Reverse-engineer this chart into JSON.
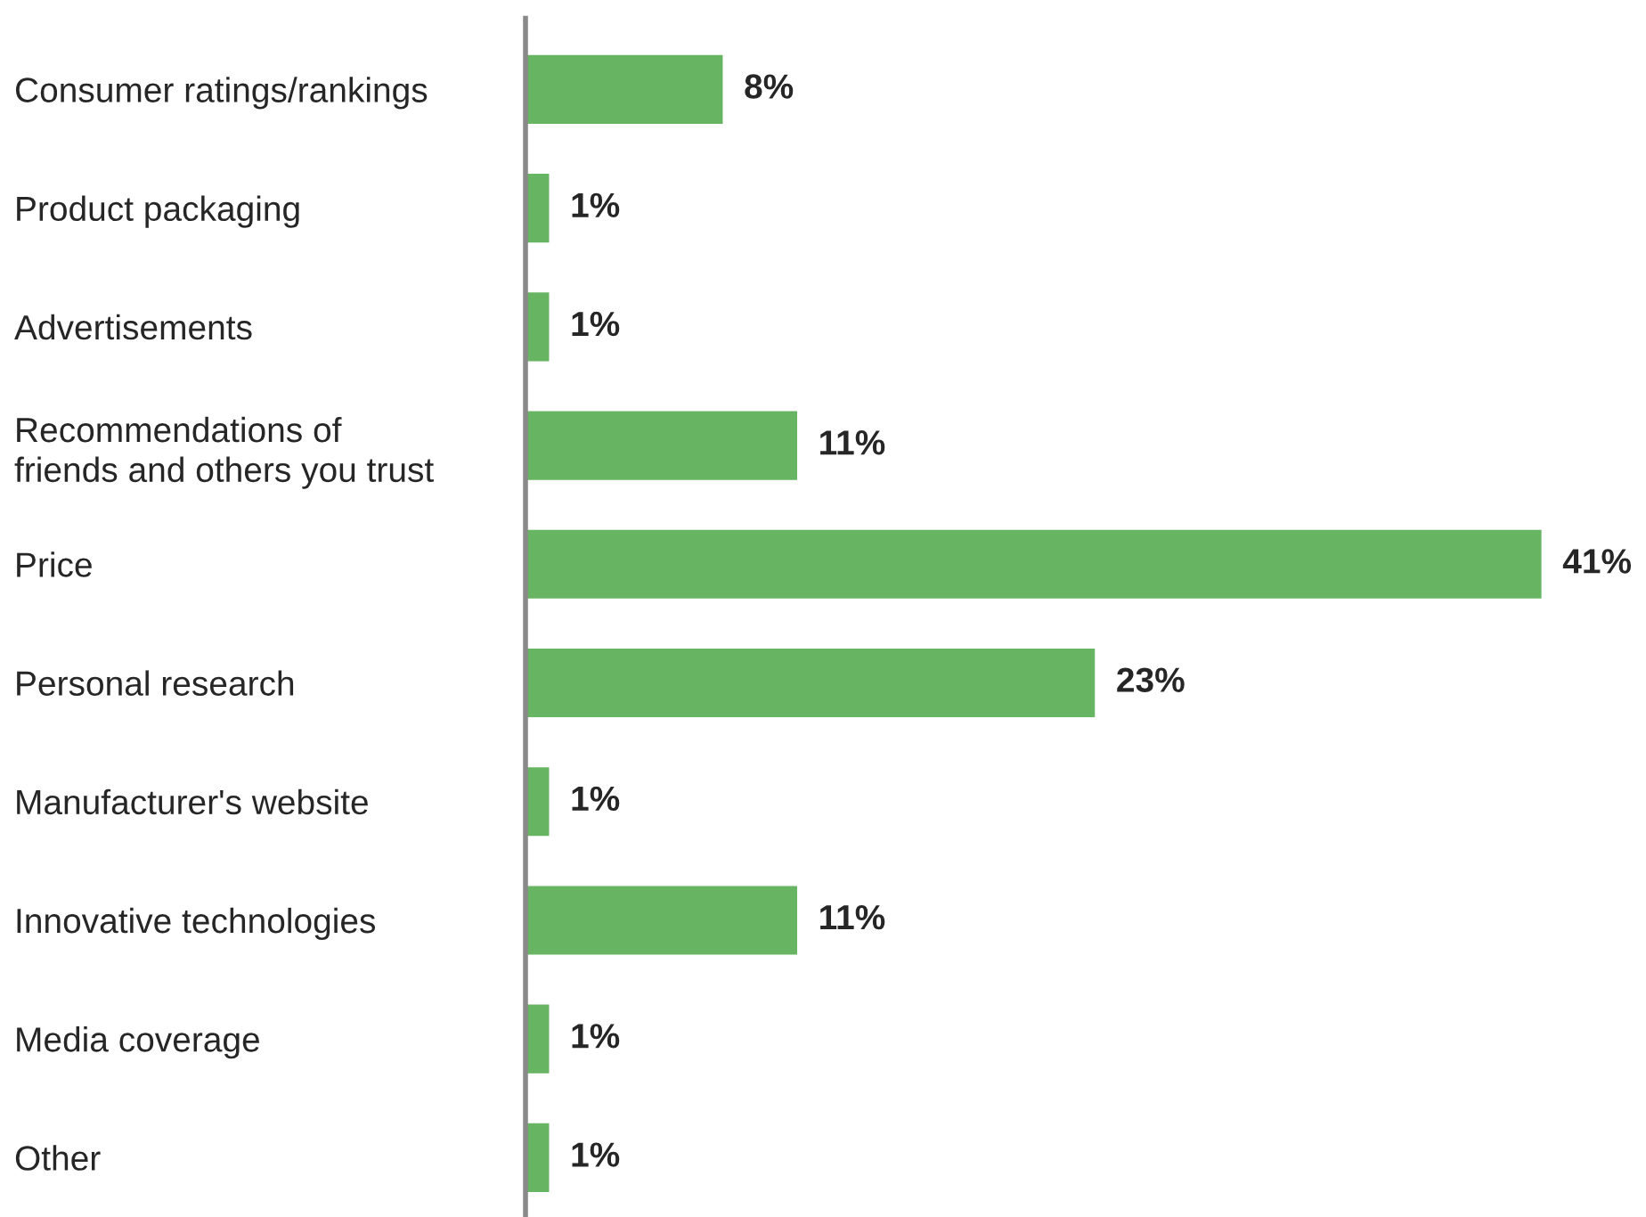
{
  "chart_data": {
    "type": "bar",
    "orientation": "horizontal",
    "categories": [
      "Consumer ratings/rankings",
      "Product packaging",
      "Advertisements",
      "Recommendations of\nfriends and others you trust",
      "Price",
      "Personal research",
      "Manufacturer's website",
      "Innovative technologies",
      "Media coverage",
      "Other"
    ],
    "values": [
      8,
      1,
      1,
      11,
      41,
      23,
      1,
      11,
      1,
      1
    ],
    "value_labels": [
      "8%",
      "1%",
      "1%",
      "11%",
      "41%",
      "23%",
      "1%",
      "11%",
      "1%",
      "1%"
    ],
    "color": "#67b562",
    "grid": false,
    "legend": false
  }
}
